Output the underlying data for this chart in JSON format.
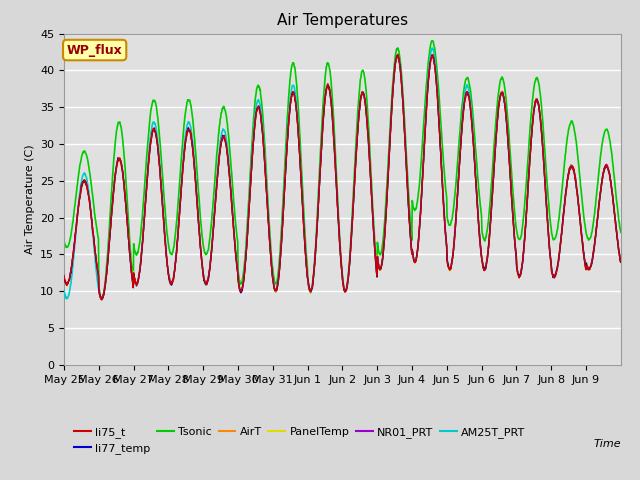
{
  "title": "Air Temperatures",
  "xlabel": "Time",
  "ylabel": "Air Temperature (C)",
  "ylim": [
    0,
    45
  ],
  "yticks": [
    0,
    5,
    10,
    15,
    20,
    25,
    30,
    35,
    40,
    45
  ],
  "x_labels": [
    "May 25",
    "May 26",
    "May 27",
    "May 28",
    "May 29",
    "May 30",
    "May 31",
    "Jun 1",
    "Jun 2",
    "Jun 3",
    "Jun 4",
    "Jun 5",
    "Jun 6",
    "Jun 7",
    "Jun 8",
    "Jun 9"
  ],
  "series": {
    "li75_t": {
      "color": "#cc0000",
      "lw": 1.0
    },
    "li77_temp": {
      "color": "#0000cc",
      "lw": 1.0
    },
    "Tsonic": {
      "color": "#00cc00",
      "lw": 1.2
    },
    "AirT": {
      "color": "#ff8800",
      "lw": 1.0
    },
    "PanelTemp": {
      "color": "#dddd00",
      "lw": 1.0
    },
    "NR01_PRT": {
      "color": "#9900cc",
      "lw": 1.0
    },
    "AM25T_PRT": {
      "color": "#00cccc",
      "lw": 1.2
    }
  },
  "legend_box_facecolor": "#ffffaa",
  "legend_box_edgecolor": "#cc8800",
  "legend_text": "WP_flux",
  "fig_facecolor": "#d8d8d8",
  "ax_facecolor": "#e0e0e0",
  "grid_color": "#ffffff",
  "title_fontsize": 11,
  "axis_label_fontsize": 8,
  "tick_fontsize": 8,
  "legend_fontsize": 8,
  "mins_main": [
    11,
    9,
    11,
    11,
    11,
    10,
    10,
    10,
    10,
    13,
    14,
    13,
    13,
    12,
    12,
    13
  ],
  "maxs_main": [
    25,
    28,
    32,
    32,
    31,
    35,
    37,
    38,
    37,
    42,
    42,
    37,
    37,
    36,
    27,
    27
  ],
  "mins_tsonic": [
    16,
    9,
    15,
    15,
    15,
    11,
    11,
    10,
    10,
    15,
    21,
    19,
    17,
    17,
    17,
    17
  ],
  "maxs_tsonic": [
    29,
    33,
    36,
    36,
    35,
    38,
    41,
    41,
    40,
    43,
    44,
    39,
    39,
    39,
    33,
    32
  ],
  "mins_cyan": [
    9,
    9,
    11,
    11,
    11,
    10,
    10,
    10,
    10,
    13,
    14,
    13,
    13,
    12,
    12,
    13
  ],
  "maxs_cyan": [
    26,
    28,
    33,
    33,
    32,
    36,
    38,
    38,
    37,
    42,
    43,
    38,
    37,
    36,
    27,
    27
  ]
}
